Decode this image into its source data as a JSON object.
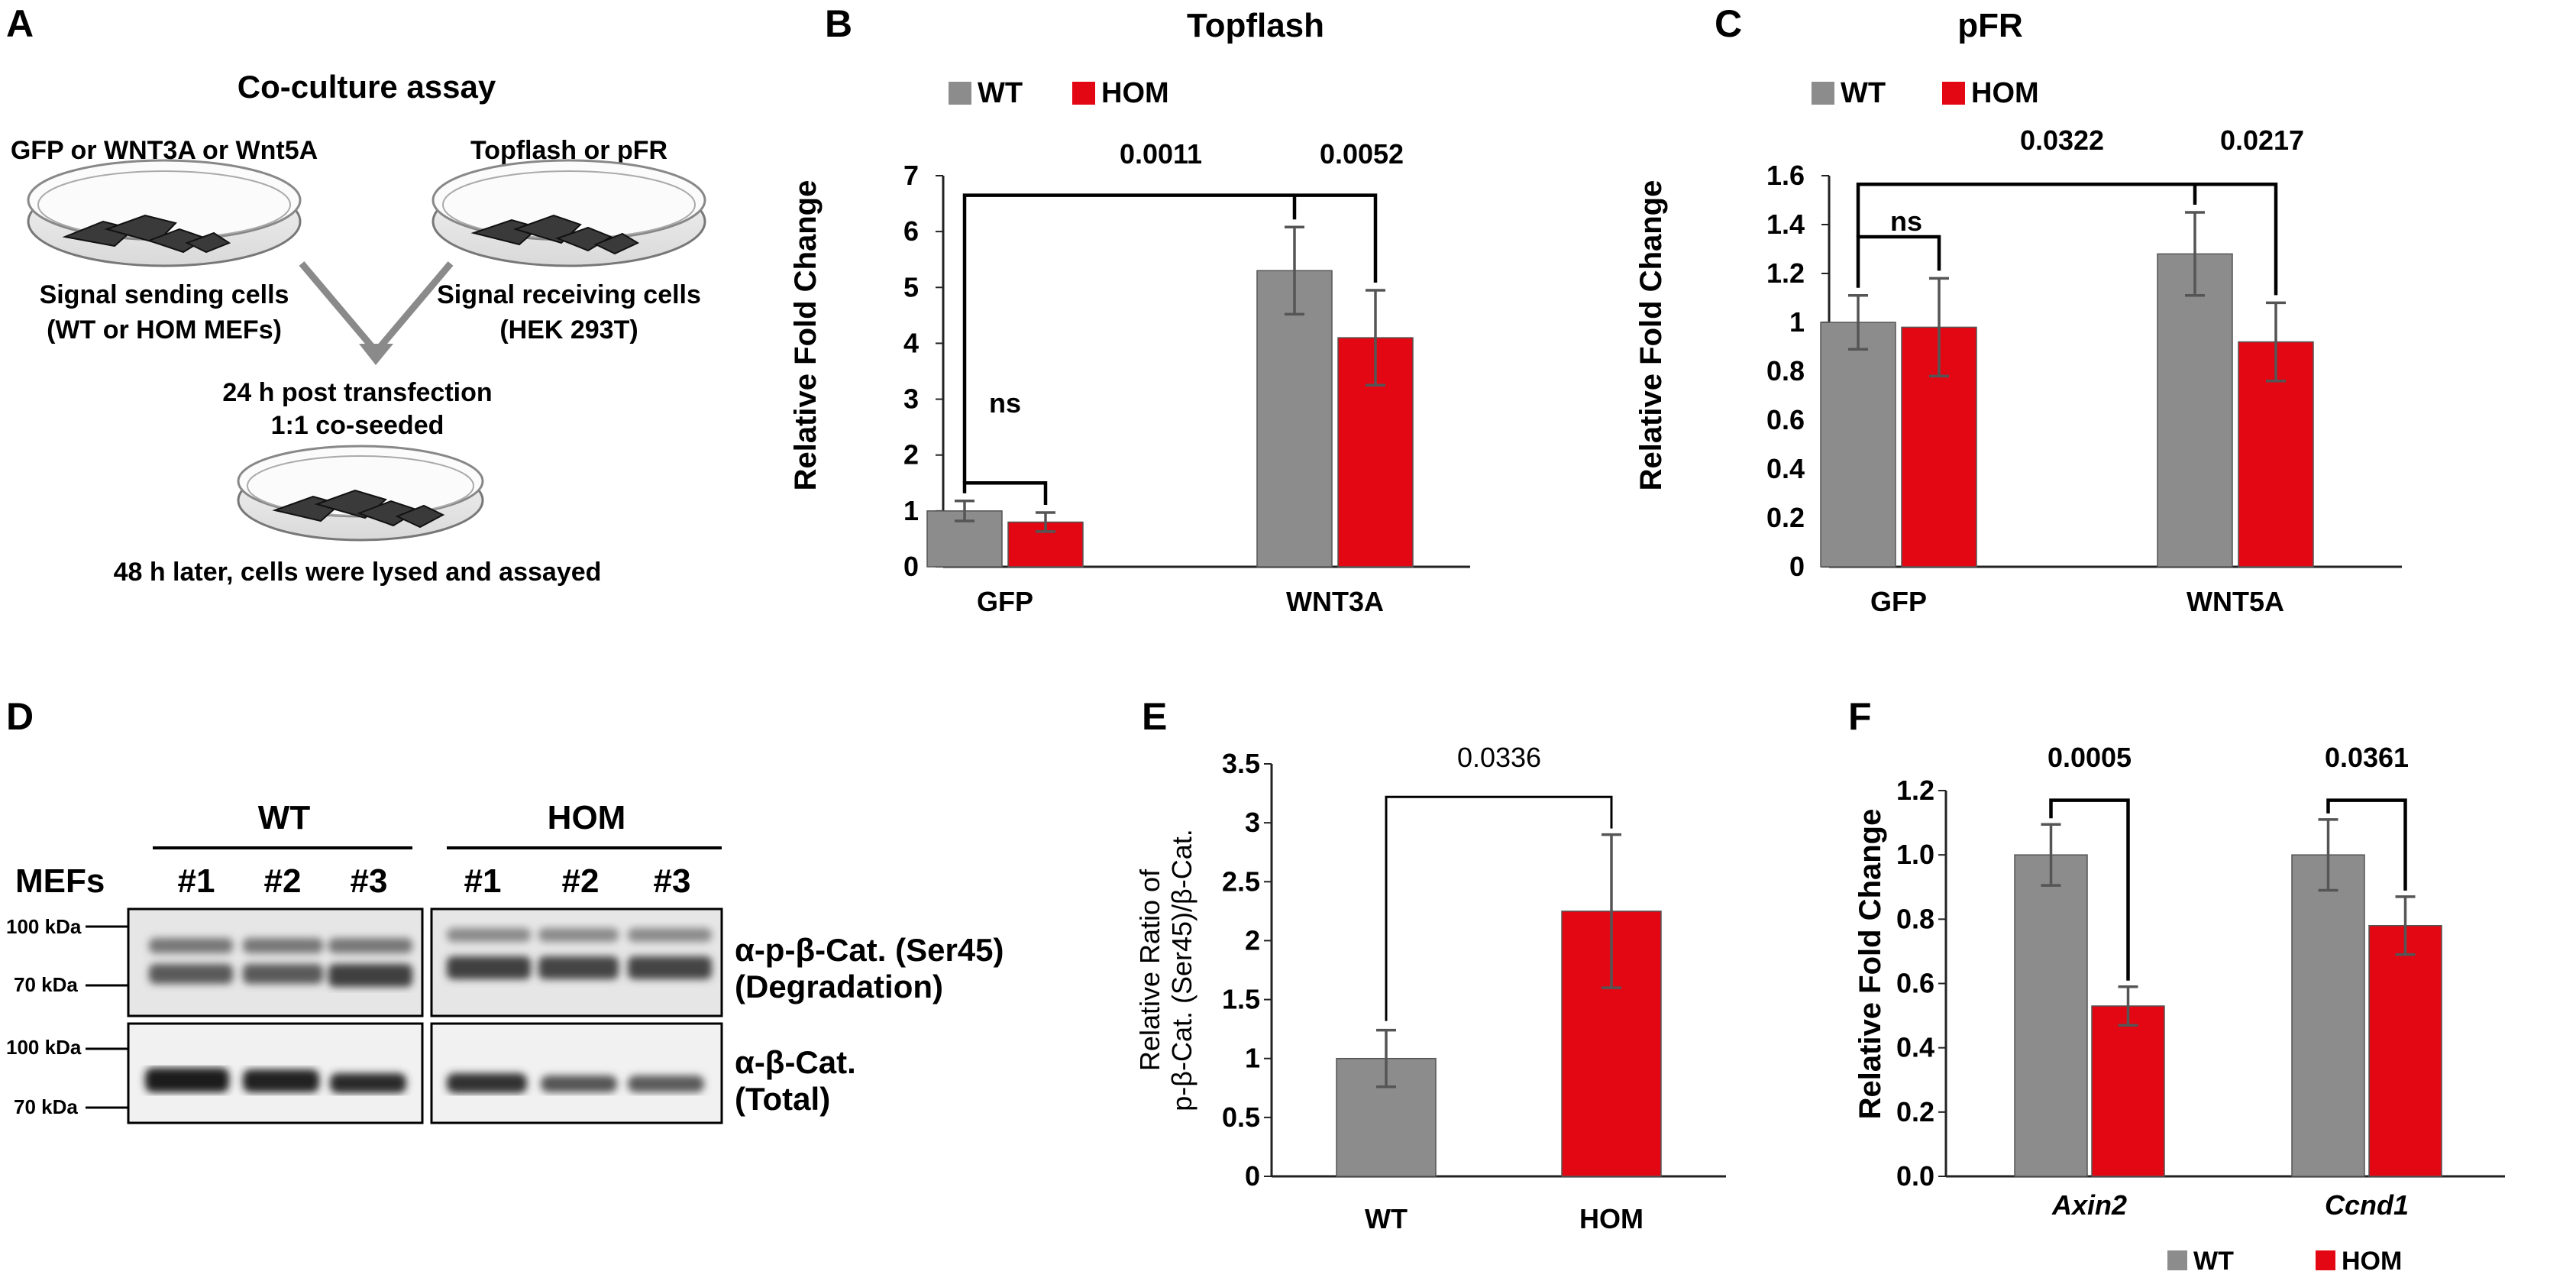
{
  "colors": {
    "wt": "#8c8c8c",
    "hom": "#e30613",
    "bracket": "#000000",
    "error": "#555555",
    "dish": "#bbbbbb",
    "cell": "#3a3a3a"
  },
  "panels": {
    "A": "A",
    "B": "B",
    "C": "C",
    "D": "D",
    "E": "E",
    "F": "F"
  },
  "panel_a": {
    "title": "Co-culture assay",
    "left_top": "GFP or WNT3A or Wnt5A",
    "right_top": "Topflash or pFR",
    "left_caption1": "Signal sending cells",
    "left_caption2": "(WT or HOM MEFs)",
    "right_caption1": "Signal receiving cells",
    "right_caption2": "(HEK 293T)",
    "mid1": "24 h post transfection",
    "mid2": "1:1 co-seeded",
    "bottom": "48 h later, cells were lysed and assayed"
  },
  "panel_d": {
    "group1": "WT",
    "group2": "HOM",
    "row_label": "MEFs",
    "lanes": [
      "#1",
      "#2",
      "#3",
      "#1",
      "#2",
      "#3"
    ],
    "kda_high": "100 kDa",
    "kda_low": "70 kDa",
    "blot1_line1": "α-p-β-Cat. (Ser45)",
    "blot1_line2": "(Degradation)",
    "blot2_line1": "α-β-Cat.",
    "blot2_line2": "(Total)"
  },
  "chart_data": [
    {
      "id": "B",
      "type": "bar",
      "title": "Topflash",
      "xlabel": "",
      "ylabel": "Relative Fold Change",
      "ylim": [
        0,
        7
      ],
      "yticks": [
        "0",
        "1",
        "2",
        "3",
        "4",
        "5",
        "6",
        "7"
      ],
      "categories": [
        "GFP",
        "WNT3A"
      ],
      "legend": [
        "WT",
        "HOM"
      ],
      "series": [
        {
          "name": "WT",
          "values": [
            1.0,
            5.3
          ],
          "errors": [
            0.18,
            0.78
          ]
        },
        {
          "name": "HOM",
          "values": [
            0.8,
            4.1
          ],
          "errors": [
            0.17,
            0.85
          ]
        }
      ],
      "annotations": [
        "ns",
        "0.0011",
        "0.0052"
      ]
    },
    {
      "id": "C",
      "type": "bar",
      "title": "pFR",
      "xlabel": "",
      "ylabel": "Relative Fold Change",
      "ylim": [
        0,
        1.6
      ],
      "yticks": [
        "0",
        "0.2",
        "0.4",
        "0.6",
        "0.8",
        "1",
        "1.2",
        "1.4",
        "1.6"
      ],
      "categories": [
        "GFP",
        "WNT5A"
      ],
      "legend": [
        "WT",
        "HOM"
      ],
      "series": [
        {
          "name": "WT",
          "values": [
            1.0,
            1.28
          ],
          "errors": [
            0.11,
            0.17
          ]
        },
        {
          "name": "HOM",
          "values": [
            0.98,
            0.92
          ],
          "errors": [
            0.2,
            0.16
          ]
        }
      ],
      "annotations": [
        "ns",
        "0.0322",
        "0.0217"
      ]
    },
    {
      "id": "E",
      "type": "bar",
      "title": "",
      "xlabel": "",
      "ylabel_line1": "Relative Ratio of",
      "ylabel_line2": "p-β-Cat. (Ser45)/β-Cat.",
      "ylim": [
        0,
        3.5
      ],
      "yticks": [
        "0",
        "0.5",
        "1",
        "1.5",
        "2",
        "2.5",
        "3",
        "3.5"
      ],
      "categories": [
        "WT",
        "HOM"
      ],
      "values": [
        1.0,
        2.25
      ],
      "errors": [
        0.24,
        0.65
      ],
      "annotations": [
        "0.0336"
      ]
    },
    {
      "id": "F",
      "type": "bar",
      "title": "",
      "xlabel": "",
      "ylabel": "Relative Fold Change",
      "ylim": [
        0,
        1.2
      ],
      "yticks": [
        "0.0",
        "0.2",
        "0.4",
        "0.6",
        "0.8",
        "1.0",
        "1.2"
      ],
      "categories": [
        "Axin2",
        "Ccnd1"
      ],
      "legend": [
        "WT",
        "HOM"
      ],
      "series": [
        {
          "name": "WT",
          "values": [
            1.0,
            1.0
          ],
          "errors": [
            0.095,
            0.11
          ]
        },
        {
          "name": "HOM",
          "values": [
            0.53,
            0.78
          ],
          "errors": [
            0.06,
            0.09
          ]
        }
      ],
      "annotations": [
        "0.0005",
        "0.0361"
      ]
    }
  ]
}
